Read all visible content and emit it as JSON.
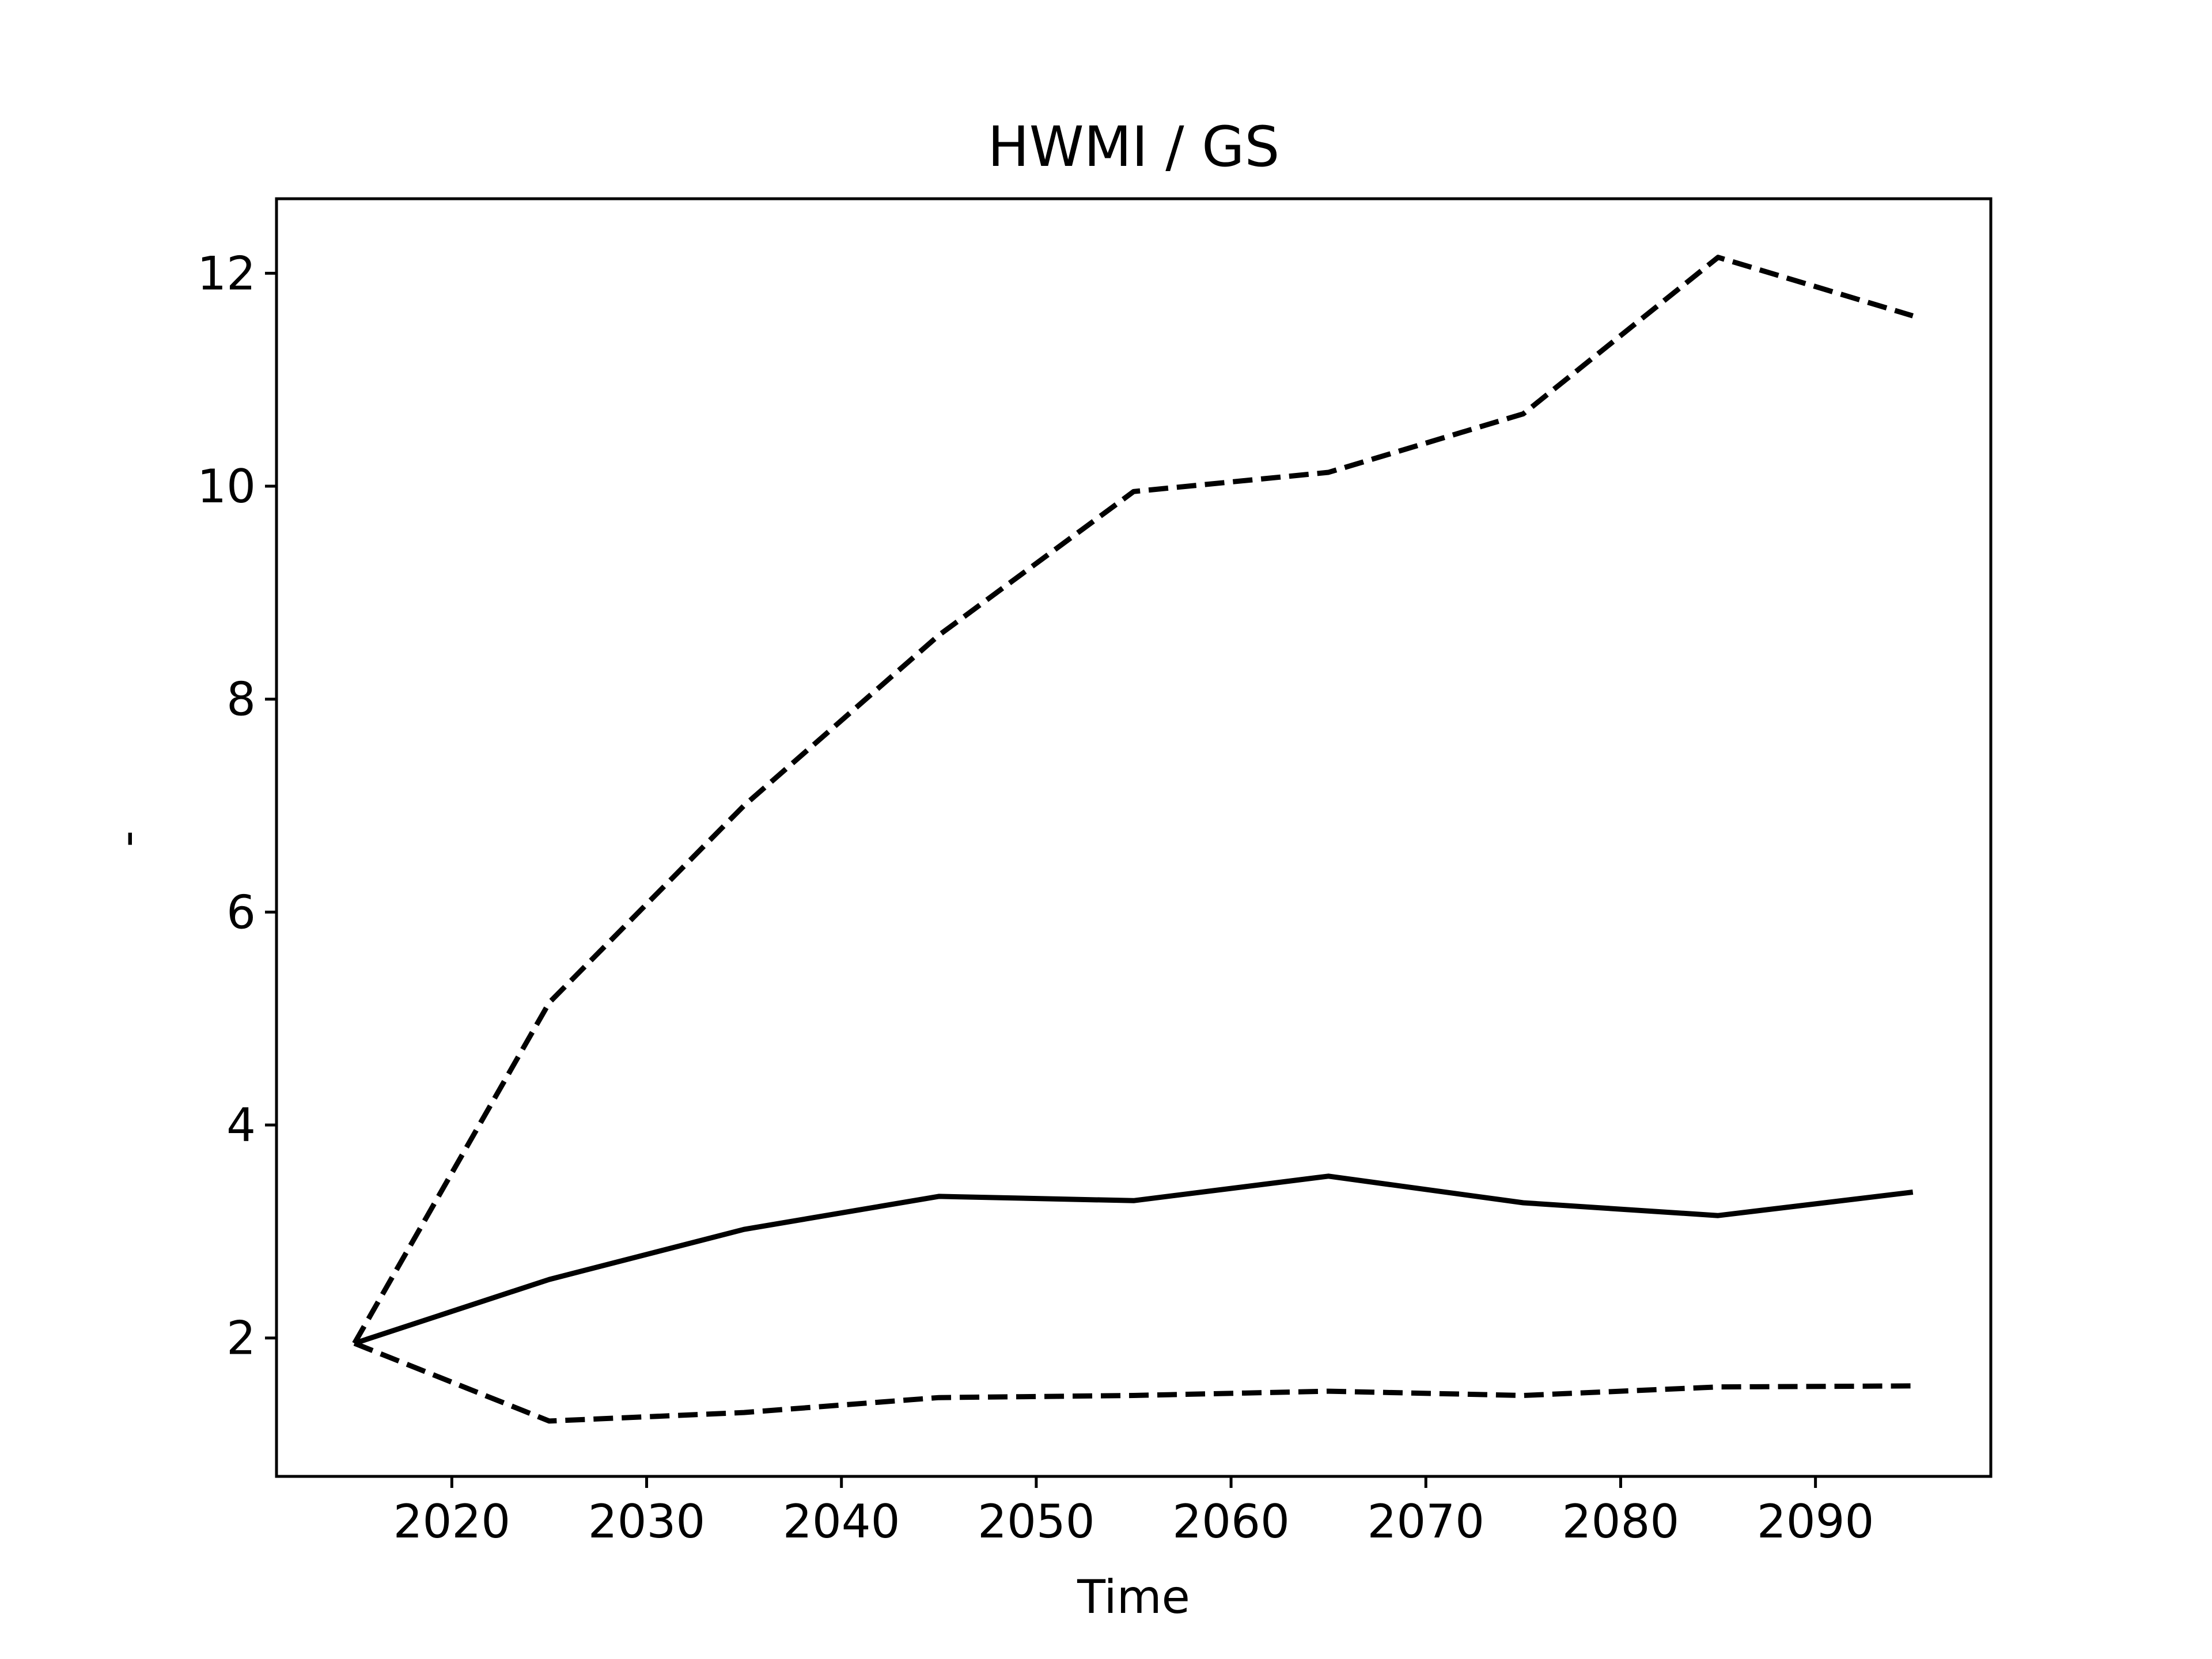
{
  "chart_data": {
    "type": "line",
    "title": "HWMI / GS",
    "xlabel": "Time",
    "ylabel": "-",
    "xlim": [
      2011,
      2099
    ],
    "ylim": [
      0.7,
      12.7
    ],
    "x_ticks": [
      2020,
      2030,
      2040,
      2050,
      2060,
      2070,
      2080,
      2090
    ],
    "y_ticks": [
      2,
      4,
      6,
      8,
      10,
      12
    ],
    "grid": false,
    "legend": "none",
    "x": [
      2015,
      2025,
      2035,
      2045,
      2055,
      2065,
      2075,
      2085,
      2095
    ],
    "series": [
      {
        "style": "solid",
        "color": "#000000",
        "values": [
          1.95,
          2.55,
          3.02,
          3.33,
          3.29,
          3.52,
          3.27,
          3.15,
          3.37
        ]
      },
      {
        "style": "dashed",
        "color": "#000000",
        "values": [
          1.95,
          5.15,
          7.0,
          8.6,
          9.95,
          10.13,
          10.68,
          12.15,
          11.6
        ]
      },
      {
        "style": "dashed",
        "color": "#000000",
        "values": [
          1.95,
          1.22,
          1.3,
          1.44,
          1.46,
          1.5,
          1.46,
          1.54,
          1.55
        ]
      }
    ]
  }
}
